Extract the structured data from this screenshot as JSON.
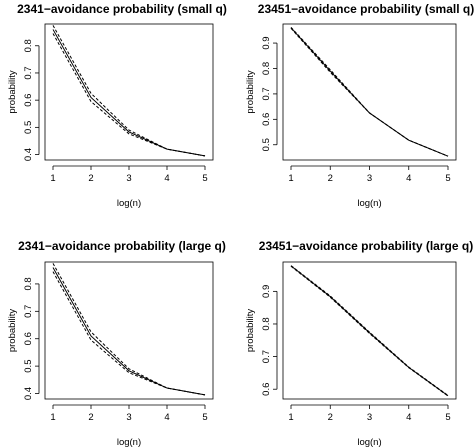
{
  "chart_data": [
    {
      "type": "line",
      "title": "2341−avoidance probability (small q)",
      "xlabel": "log(n)",
      "ylabel": "probability",
      "xlim": [
        1,
        5
      ],
      "ylim": [
        0.38,
        0.88
      ],
      "xticks": [
        "1",
        "2",
        "3",
        "4",
        "5"
      ],
      "yticks": [
        "0.4",
        "0.5",
        "0.6",
        "0.7",
        "0.8"
      ],
      "x": [
        1,
        2,
        3,
        4,
        5
      ],
      "series": [
        {
          "style": "dashed",
          "values": [
            0.875,
            0.625,
            0.49,
            0.42,
            0.395
          ]
        },
        {
          "style": "solid",
          "values": [
            0.86,
            0.61,
            0.483,
            0.42,
            0.395
          ]
        },
        {
          "style": "dashed",
          "values": [
            0.845,
            0.595,
            0.476,
            0.42,
            0.395
          ]
        }
      ]
    },
    {
      "type": "line",
      "title": "23451−avoidance probability (small q)",
      "xlabel": "log(n)",
      "ylabel": "probability",
      "xlim": [
        1,
        5
      ],
      "ylim": [
        0.44,
        0.975
      ],
      "xticks": [
        "1",
        "2",
        "3",
        "4",
        "5"
      ],
      "yticks": [
        "0.5",
        "0.6",
        "0.7",
        "0.8",
        "0.9"
      ],
      "x": [
        1,
        2,
        3,
        4,
        5
      ],
      "series": [
        {
          "style": "dashed",
          "values": [
            0.962,
            0.795,
            0.625,
            0.518,
            0.455
          ]
        },
        {
          "style": "solid",
          "values": [
            0.96,
            0.79,
            0.625,
            0.518,
            0.455
          ]
        },
        {
          "style": "dashed",
          "values": [
            0.958,
            0.785,
            0.625,
            0.518,
            0.455
          ]
        }
      ]
    },
    {
      "type": "line",
      "title": "2341−avoidance probability (large q)",
      "xlabel": "log(n)",
      "ylabel": "probability",
      "xlim": [
        1,
        5
      ],
      "ylim": [
        0.38,
        0.88
      ],
      "xticks": [
        "1",
        "2",
        "3",
        "4",
        "5"
      ],
      "yticks": [
        "0.4",
        "0.5",
        "0.6",
        "0.7",
        "0.8"
      ],
      "x": [
        1,
        2,
        3,
        4,
        5
      ],
      "series": [
        {
          "style": "dashed",
          "values": [
            0.875,
            0.625,
            0.49,
            0.42,
            0.395
          ]
        },
        {
          "style": "solid",
          "values": [
            0.86,
            0.61,
            0.483,
            0.42,
            0.395
          ]
        },
        {
          "style": "dashed",
          "values": [
            0.845,
            0.595,
            0.476,
            0.42,
            0.395
          ]
        }
      ]
    },
    {
      "type": "line",
      "title": "23451−avoidance probability (large q)",
      "xlabel": "log(n)",
      "ylabel": "probability",
      "xlim": [
        1,
        5
      ],
      "ylim": [
        0.57,
        0.99
      ],
      "xticks": [
        "1",
        "2",
        "3",
        "4",
        "5"
      ],
      "yticks": [
        "0.6",
        "0.7",
        "0.8",
        "0.9"
      ],
      "x": [
        1,
        2,
        3,
        4,
        5
      ],
      "series": [
        {
          "style": "dashed",
          "values": [
            0.979,
            0.886,
            0.775,
            0.668,
            0.581
          ]
        },
        {
          "style": "solid",
          "values": [
            0.978,
            0.884,
            0.773,
            0.667,
            0.58
          ]
        },
        {
          "style": "dashed",
          "values": [
            0.977,
            0.882,
            0.771,
            0.666,
            0.579
          ]
        }
      ]
    }
  ]
}
